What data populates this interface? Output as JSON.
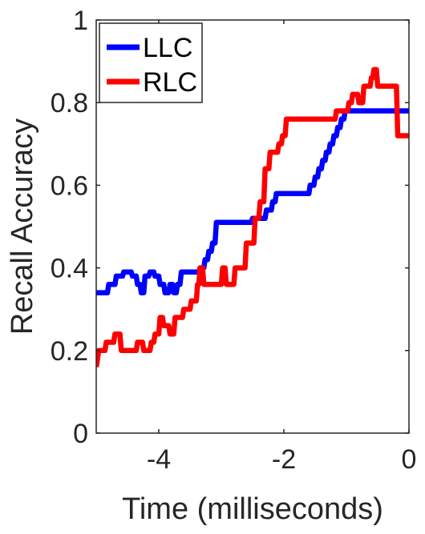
{
  "chart_data": {
    "type": "line",
    "title": "",
    "xlabel": "Time (milliseconds)",
    "ylabel": "Recall Accuracy",
    "xlim": [
      -5,
      0
    ],
    "ylim": [
      0,
      1
    ],
    "xticks": [
      -4,
      -2,
      0
    ],
    "xtick_labels": [
      "-4",
      "-2",
      "0"
    ],
    "yticks": [
      0,
      0.2,
      0.4,
      0.6,
      0.8,
      1
    ],
    "ytick_labels": [
      "0",
      "0.2",
      "0.4",
      "0.6",
      "0.8",
      "1"
    ],
    "grid": false,
    "legend_position": "top-left",
    "series": [
      {
        "name": "LLC",
        "color": "#0000ff",
        "x": [
          -5.0,
          -4.82,
          -4.8,
          -4.7,
          -4.68,
          -4.58,
          -4.56,
          -4.44,
          -4.42,
          -4.36,
          -4.34,
          -4.3,
          -4.28,
          -4.24,
          -4.22,
          -4.16,
          -4.14,
          -4.08,
          -4.06,
          -4.0,
          -3.98,
          -3.92,
          -3.9,
          -3.84,
          -3.82,
          -3.78,
          -3.76,
          -3.72,
          -3.7,
          -3.66,
          -3.64,
          -3.36,
          -3.34,
          -3.28,
          -3.26,
          -3.22,
          -3.2,
          -3.16,
          -3.14,
          -3.1,
          -3.08,
          -2.52,
          -2.5,
          -2.3,
          -2.28,
          -2.2,
          -2.18,
          -2.14,
          -2.12,
          -1.6,
          -1.58,
          -1.52,
          -1.5,
          -1.46,
          -1.44,
          -1.4,
          -1.38,
          -1.34,
          -1.32,
          -1.28,
          -1.26,
          -1.22,
          -1.2,
          -1.16,
          -1.14,
          -1.1,
          -1.08,
          -1.04,
          -1.02,
          -0.98,
          -0.96,
          0.0
        ],
        "y": [
          0.34,
          0.34,
          0.36,
          0.36,
          0.38,
          0.38,
          0.39,
          0.39,
          0.38,
          0.38,
          0.36,
          0.36,
          0.34,
          0.34,
          0.38,
          0.38,
          0.39,
          0.39,
          0.38,
          0.38,
          0.36,
          0.36,
          0.34,
          0.34,
          0.36,
          0.36,
          0.34,
          0.34,
          0.36,
          0.36,
          0.39,
          0.39,
          0.4,
          0.4,
          0.42,
          0.42,
          0.44,
          0.44,
          0.46,
          0.46,
          0.51,
          0.51,
          0.52,
          0.52,
          0.54,
          0.54,
          0.56,
          0.56,
          0.58,
          0.58,
          0.6,
          0.6,
          0.62,
          0.62,
          0.64,
          0.64,
          0.66,
          0.66,
          0.68,
          0.68,
          0.7,
          0.7,
          0.72,
          0.72,
          0.74,
          0.74,
          0.76,
          0.76,
          0.78,
          0.78,
          0.78,
          0.78
        ]
      },
      {
        "name": "RLC",
        "color": "#ff0000",
        "x": [
          -5.0,
          -4.98,
          -4.96,
          -4.86,
          -4.84,
          -4.72,
          -4.7,
          -4.62,
          -4.6,
          -4.36,
          -4.34,
          -4.26,
          -4.24,
          -4.14,
          -4.12,
          -4.08,
          -4.06,
          -4.0,
          -3.98,
          -3.94,
          -3.92,
          -3.84,
          -3.82,
          -3.76,
          -3.74,
          -3.62,
          -3.6,
          -3.5,
          -3.48,
          -3.4,
          -3.38,
          -3.36,
          -3.34,
          -3.3,
          -3.28,
          -3.0,
          -2.98,
          -2.94,
          -2.92,
          -2.8,
          -2.78,
          -2.62,
          -2.6,
          -2.48,
          -2.46,
          -2.4,
          -2.38,
          -2.32,
          -2.3,
          -2.24,
          -2.22,
          -2.1,
          -2.08,
          -2.04,
          -2.02,
          -1.98,
          -1.96,
          -1.18,
          -1.16,
          -0.98,
          -0.96,
          -0.92,
          -0.9,
          -0.82,
          -0.8,
          -0.74,
          -0.72,
          -0.62,
          -0.6,
          -0.58,
          -0.56,
          -0.52,
          -0.5,
          -0.34,
          -0.32,
          -0.2,
          -0.18,
          0.0
        ],
        "y": [
          0.16,
          0.18,
          0.2,
          0.2,
          0.22,
          0.22,
          0.24,
          0.24,
          0.2,
          0.2,
          0.22,
          0.22,
          0.2,
          0.2,
          0.22,
          0.22,
          0.24,
          0.24,
          0.28,
          0.28,
          0.26,
          0.26,
          0.24,
          0.24,
          0.28,
          0.28,
          0.3,
          0.3,
          0.32,
          0.32,
          0.36,
          0.36,
          0.4,
          0.4,
          0.36,
          0.36,
          0.4,
          0.4,
          0.36,
          0.36,
          0.4,
          0.4,
          0.46,
          0.46,
          0.52,
          0.52,
          0.56,
          0.56,
          0.64,
          0.64,
          0.68,
          0.68,
          0.7,
          0.7,
          0.72,
          0.72,
          0.76,
          0.76,
          0.78,
          0.78,
          0.8,
          0.8,
          0.82,
          0.82,
          0.8,
          0.8,
          0.84,
          0.84,
          0.86,
          0.86,
          0.88,
          0.88,
          0.84,
          0.84,
          0.84,
          0.84,
          0.72,
          0.72
        ]
      }
    ]
  }
}
